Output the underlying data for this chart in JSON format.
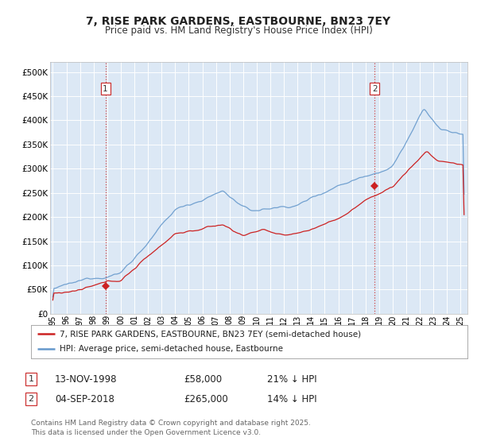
{
  "title": "7, RISE PARK GARDENS, EASTBOURNE, BN23 7EY",
  "subtitle": "Price paid vs. HM Land Registry's House Price Index (HPI)",
  "title_fontsize": 10,
  "subtitle_fontsize": 8.5,
  "background_color": "#ffffff",
  "plot_bg_color": "#dce8f5",
  "grid_color": "#ffffff",
  "hpi_color": "#6699cc",
  "price_color": "#cc2222",
  "marker_color": "#cc2222",
  "vline_color": "#cc3333",
  "sale1_x": 1998.87,
  "sale1_y": 58000,
  "sale1_label": "1",
  "sale1_date": "13-NOV-1998",
  "sale1_price": "£58,000",
  "sale1_hpi": "21% ↓ HPI",
  "sale2_x": 2018.67,
  "sale2_y": 265000,
  "sale2_label": "2",
  "sale2_date": "04-SEP-2018",
  "sale2_price": "£265,000",
  "sale2_hpi": "14% ↓ HPI",
  "xmin": 1994.8,
  "xmax": 2025.5,
  "ymin": 0,
  "ymax": 520000,
  "yticks": [
    0,
    50000,
    100000,
    150000,
    200000,
    250000,
    300000,
    350000,
    400000,
    450000,
    500000
  ],
  "ytick_labels": [
    "£0",
    "£50K",
    "£100K",
    "£150K",
    "£200K",
    "£250K",
    "£300K",
    "£350K",
    "£400K",
    "£450K",
    "£500K"
  ],
  "legend_label_price": "7, RISE PARK GARDENS, EASTBOURNE, BN23 7EY (semi-detached house)",
  "legend_label_hpi": "HPI: Average price, semi-detached house, Eastbourne",
  "footer": "Contains HM Land Registry data © Crown copyright and database right 2025.\nThis data is licensed under the Open Government Licence v3.0."
}
